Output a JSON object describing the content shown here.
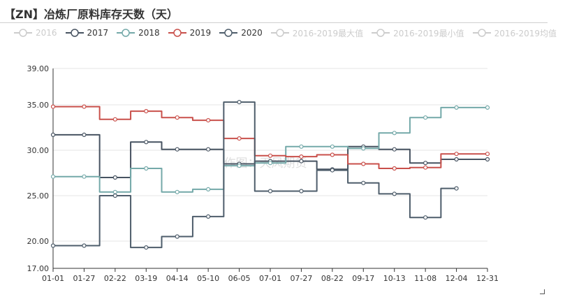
{
  "header": {
    "title": "【ZN】冶炼厂原料库存天数（天）"
  },
  "watermark": "作图：天风期货",
  "chart_data": {
    "type": "line",
    "step": true,
    "title": "【ZN】冶炼厂原料库存天数（天）",
    "xlabel": "",
    "ylabel": "",
    "ylim": [
      17,
      39
    ],
    "yticks": [
      "17.00",
      "20.00",
      "25.00",
      "30.00",
      "35.00",
      "39.00"
    ],
    "xticks": [
      "01-01",
      "01-27",
      "02-22",
      "03-19",
      "04-14",
      "05-10",
      "06-05",
      "07-01",
      "07-27",
      "08-22",
      "09-17",
      "10-13",
      "11-08",
      "12-04",
      "12-31"
    ],
    "grid": true,
    "legend_position": "top",
    "legend": [
      {
        "name": "2016",
        "color": "#cccccc",
        "active": false
      },
      {
        "name": "2017",
        "color": "#475361",
        "active": true
      },
      {
        "name": "2018",
        "color": "#74a9a9",
        "active": true
      },
      {
        "name": "2019",
        "color": "#c9504b",
        "active": true
      },
      {
        "name": "2020",
        "color": "#4e5d6b",
        "active": true
      },
      {
        "name": "2016-2019最大值",
        "color": "#cccccc",
        "active": false
      },
      {
        "name": "2016-2019最小值",
        "color": "#cccccc",
        "active": false
      },
      {
        "name": "2016-2019均值",
        "color": "#cccccc",
        "active": false
      }
    ],
    "series": [
      {
        "name": "2017",
        "color": "#475361",
        "x": [
          "01-01",
          "01-27",
          "02-22",
          "03-19",
          "04-14",
          "05-10",
          "06-05",
          "07-01",
          "07-27",
          "08-22",
          "09-17",
          "10-13",
          "11-08",
          "12-04",
          "12-31"
        ],
        "values": [
          31.7,
          31.7,
          27.0,
          30.9,
          30.1,
          30.1,
          28.5,
          28.8,
          28.8,
          27.9,
          30.4,
          30.1,
          28.6,
          29.0,
          29.0
        ]
      },
      {
        "name": "2018",
        "color": "#74a9a9",
        "x": [
          "01-01",
          "01-27",
          "02-22",
          "03-19",
          "04-14",
          "05-10",
          "06-05",
          "07-01",
          "07-27",
          "08-22",
          "09-17",
          "10-13",
          "11-08",
          "12-04",
          "12-31"
        ],
        "values": [
          27.1,
          27.1,
          25.4,
          28.0,
          25.4,
          25.7,
          28.3,
          28.6,
          30.4,
          30.4,
          30.2,
          31.9,
          33.6,
          34.7,
          34.7
        ]
      },
      {
        "name": "2019",
        "color": "#c9504b",
        "x": [
          "01-01",
          "01-27",
          "02-22",
          "03-19",
          "04-14",
          "05-10",
          "06-05",
          "07-01",
          "07-27",
          "08-22",
          "09-17",
          "10-13",
          "11-08",
          "12-04",
          "12-31"
        ],
        "values": [
          34.8,
          34.8,
          33.4,
          34.3,
          33.6,
          33.3,
          31.3,
          29.4,
          29.3,
          29.5,
          28.5,
          28.0,
          28.1,
          29.6,
          29.6
        ]
      },
      {
        "name": "2020",
        "color": "#4e5d6b",
        "x": [
          "01-01",
          "01-27",
          "02-22",
          "03-19",
          "04-14",
          "05-10",
          "06-05",
          "07-01",
          "07-27",
          "08-22",
          "09-17",
          "10-13",
          "11-08",
          "12-04"
        ],
        "values": [
          19.5,
          19.5,
          25.0,
          19.3,
          20.5,
          22.7,
          35.3,
          25.5,
          25.5,
          27.8,
          26.4,
          25.2,
          22.6,
          25.8
        ]
      }
    ]
  }
}
